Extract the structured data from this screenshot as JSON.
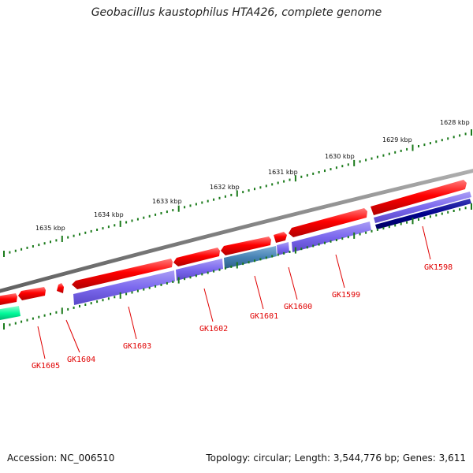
{
  "title": "Geobacillus kaustophilus HTA426, complete genome",
  "footer": {
    "accession": "Accession: NC_006510",
    "summary": "Topology: circular; Length: 3,544,776 bp; Genes: 3,611"
  },
  "ruler_labels": [
    "1628 kbp",
    "1629 kbp",
    "1630 kbp",
    "1631 kbp",
    "1632 kbp",
    "1633 kbp",
    "1634 kbp",
    "1635 kbp"
  ],
  "gene_labels": [
    "GK1598",
    "GK1599",
    "GK1600",
    "GK1601",
    "GK1602",
    "GK1603",
    "GK1604",
    "GK1605"
  ],
  "colors": {
    "forward_gene": "#ff0000",
    "reverse_cds": "#7b68ee",
    "reverse_cds_dark": "#00008b",
    "reverse_cds_teal": "#4682b4",
    "other_feature": "#00fa9a",
    "backbone": "#808080",
    "ticks": "#1a7a1a",
    "label": "#e00000"
  }
}
